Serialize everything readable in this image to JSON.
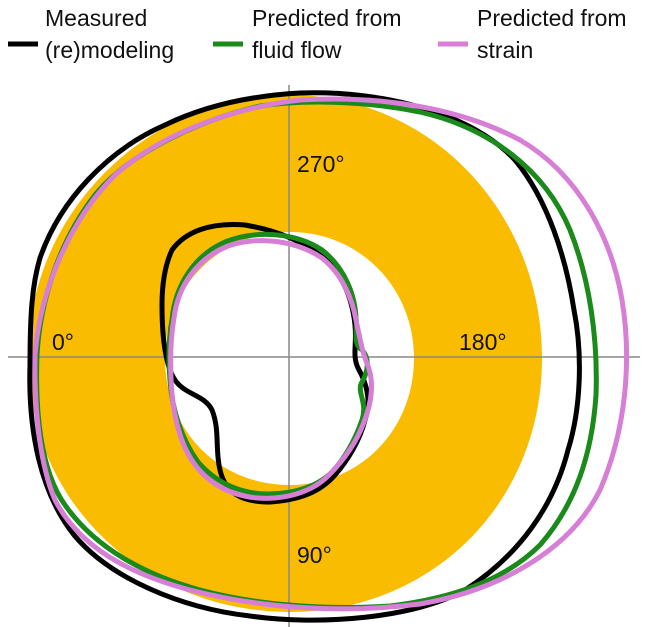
{
  "legend": {
    "items": [
      {
        "label_lines": [
          "Measured",
          "(re)modeling"
        ],
        "color": "#000000"
      },
      {
        "label_lines": [
          "Predicted from",
          "fluid flow"
        ],
        "color": "#1a8a1a"
      },
      {
        "label_lines": [
          "Predicted from",
          "strain"
        ],
        "color": "#d77fd6"
      }
    ]
  },
  "angles": {
    "top": "270°",
    "left": "0°",
    "right": "180°",
    "bottom": "90°"
  },
  "colors": {
    "bone_annulus": "#f9bc00",
    "axes": "#888888",
    "background": "#ffffff"
  }
}
